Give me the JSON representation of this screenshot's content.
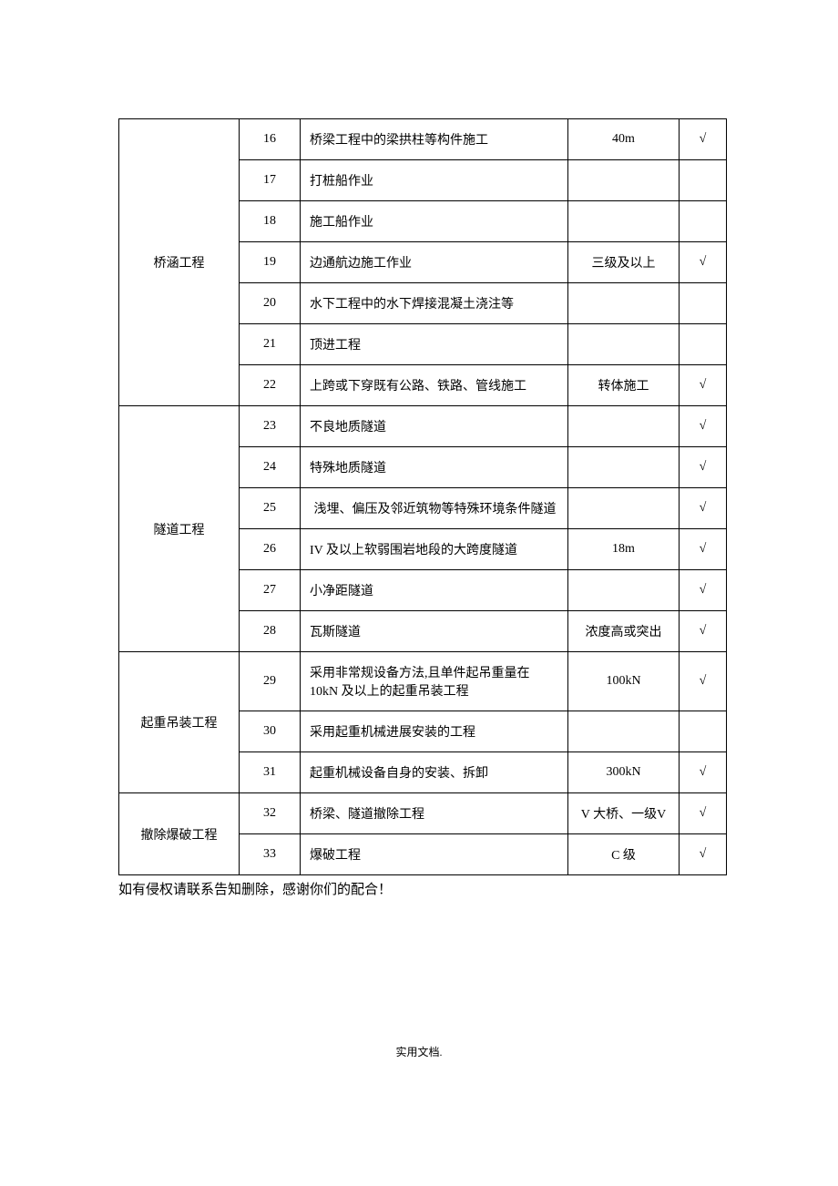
{
  "table": {
    "rows": [
      {
        "category": "桥涵工程",
        "num": "16",
        "desc": "桥梁工程中的梁拱柱等构件施工",
        "spec": "40m",
        "check": "√",
        "rowspan": 7
      },
      {
        "num": "17",
        "desc": "打桩船作业",
        "spec": "",
        "check": ""
      },
      {
        "num": "18",
        "desc": "施工船作业",
        "spec": "",
        "check": ""
      },
      {
        "num": "19",
        "desc": "边通航边施工作业",
        "spec": "三级及以上",
        "check": "√"
      },
      {
        "num": "20",
        "desc": "水下工程中的水下焊接混凝土浇注等",
        "spec": "",
        "check": ""
      },
      {
        "num": "21",
        "desc": "顶进工程",
        "spec": "",
        "check": ""
      },
      {
        "num": "22",
        "desc": "上跨或下穿既有公路、铁路、管线施工",
        "spec": "转体施工",
        "check": "√"
      },
      {
        "category": "隧道工程",
        "num": "23",
        "desc": "不良地质隧道",
        "spec": "",
        "check": "√",
        "rowspan": 6
      },
      {
        "num": "24",
        "desc": "特殊地质隧道",
        "spec": "",
        "check": "√"
      },
      {
        "num": "25",
        "desc": "浅埋、偏压及邻近筑物等特殊环境条件隧道",
        "spec": "",
        "check": "√",
        "descCenter": true
      },
      {
        "num": "26",
        "desc": "IV 及以上软弱围岩地段的大跨度隧道",
        "spec": "18m",
        "check": "√"
      },
      {
        "num": "27",
        "desc": "小净距隧道",
        "spec": "",
        "check": "√"
      },
      {
        "num": "28",
        "desc": "瓦斯隧道",
        "spec": "浓度高或突出",
        "check": "√"
      },
      {
        "category": "起重吊装工程",
        "num": "29",
        "desc": "采用非常规设备方法,且单件起吊重量在 10kN 及以上的起重吊装工程",
        "spec": "100kN",
        "check": "√",
        "rowspan": 3
      },
      {
        "num": "30",
        "desc": "采用起重机械进展安装的工程",
        "spec": "",
        "check": ""
      },
      {
        "num": "31",
        "desc": "起重机械设备自身的安装、拆卸",
        "spec": "300kN",
        "check": "√"
      },
      {
        "category": "撤除爆破工程",
        "num": "32",
        "desc": "桥梁、隧道撤除工程",
        "spec": "V 大桥、一级V",
        "check": "√",
        "rowspan": 2
      },
      {
        "num": "33",
        "desc": "爆破工程",
        "spec": "C 级",
        "check": "√"
      }
    ]
  },
  "footerNote": "如有侵权请联系告知删除，感谢你们的配合！",
  "pageFooter": "实用文档."
}
